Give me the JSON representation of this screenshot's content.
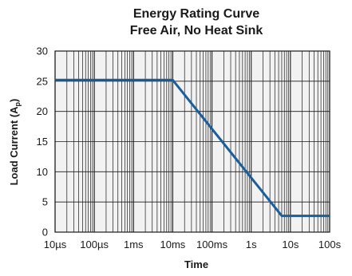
{
  "chart_data": {
    "type": "line",
    "title": "Energy Rating Curve",
    "subtitle": "Free Air, No Heat Sink",
    "xlabel": "Time",
    "ylabel_main": "Load Current (A",
    "ylabel_sub": "p",
    "ylabel_close": ")",
    "x_scale": "log",
    "x_ticks": [
      {
        "label": "10µs",
        "seconds": 1e-05
      },
      {
        "label": "100µs",
        "seconds": 0.0001
      },
      {
        "label": "1ms",
        "seconds": 0.001
      },
      {
        "label": "10ms",
        "seconds": 0.01
      },
      {
        "label": "100ms",
        "seconds": 0.1
      },
      {
        "label": "1s",
        "seconds": 1
      },
      {
        "label": "10s",
        "seconds": 10
      },
      {
        "label": "100s",
        "seconds": 100
      }
    ],
    "y_ticks": [
      0,
      5,
      10,
      15,
      20,
      25,
      30
    ],
    "ylim": [
      0,
      30
    ],
    "xlim_seconds": [
      1e-05,
      100
    ],
    "grid": true,
    "series": [
      {
        "color": "#1a5e9c",
        "points": [
          {
            "x": 1e-05,
            "y": 25.2
          },
          {
            "x": 0.01,
            "y": 25.2
          },
          {
            "x": 6.0,
            "y": 2.7
          },
          {
            "x": 100,
            "y": 2.7
          }
        ]
      }
    ],
    "colors": {
      "plot_bg": "#f2f2f2",
      "grid": "#1a1a1a",
      "line": "#1a5e9c"
    }
  }
}
